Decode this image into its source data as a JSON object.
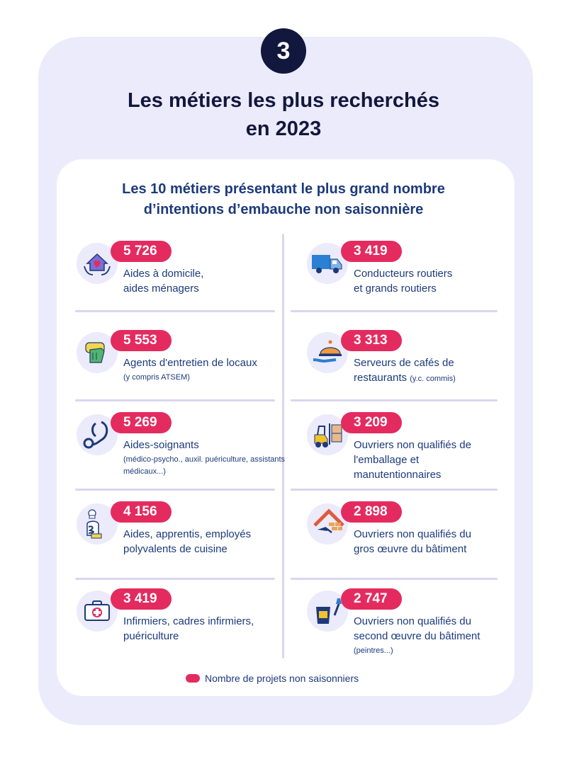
{
  "badge_number": "3",
  "title": {
    "line1": "Les métiers les plus recherchés",
    "line2": "en 2023"
  },
  "subtitle": {
    "line1": "Les 10 métiers présentant le plus grand nombre",
    "line2": "d’intentions d’embauche non saisonnière"
  },
  "colors": {
    "accent": "#e42b5f",
    "navy": "#12173d",
    "text": "#1c3a7c",
    "panel": "#ecebfb"
  },
  "jobs": [
    {
      "value": "5 726",
      "line1": "Aides à domicile,",
      "line2": "aides ménagers",
      "note": "",
      "icon": "house-heart-icon"
    },
    {
      "value": "5 553",
      "line1": "Agents d'entretien de locaux",
      "line2": "",
      "note": "(y compris ATSEM)",
      "icon": "cleaning-gloves-icon"
    },
    {
      "value": "5 269",
      "line1": "Aides-soignants",
      "line2": "",
      "note": "(médico-psycho., auxil. puériculture, assistants médicaux...)",
      "icon": "stethoscope-icon"
    },
    {
      "value": "4 156",
      "line1": "Aides, apprentis, employés",
      "line2": "polyvalents de cuisine",
      "note": "",
      "icon": "chef-icon"
    },
    {
      "value": "3 419",
      "line1": "Infirmiers, cadres infirmiers,",
      "line2": "puériculture",
      "note": "",
      "icon": "first-aid-kit-icon"
    },
    {
      "value": "3 419",
      "line1": "Conducteurs routiers",
      "line2": "et grands routiers",
      "note": "",
      "icon": "truck-icon"
    },
    {
      "value": "3 313",
      "line1": "Serveurs de cafés de",
      "line2": "restaurants",
      "note": "(y.c. commis)",
      "icon": "cloche-icon"
    },
    {
      "value": "3 209",
      "line1": "Ouvriers non qualifiés de",
      "line2": "l'emballage et",
      "line3": "manutentionnaires",
      "note": "",
      "icon": "forklift-icon"
    },
    {
      "value": "2 898",
      "line1": "Ouvriers non qualifiés du",
      "line2": "gros œuvre du bâtiment",
      "note": "",
      "icon": "brick-trowel-icon"
    },
    {
      "value": "2 747",
      "line1": "Ouvriers non qualifiés du",
      "line2": "second œuvre du bâtiment",
      "note": "(peintres...)",
      "icon": "paint-bucket-icon"
    }
  ],
  "legend": "Nombre de projets non saisonniers"
}
